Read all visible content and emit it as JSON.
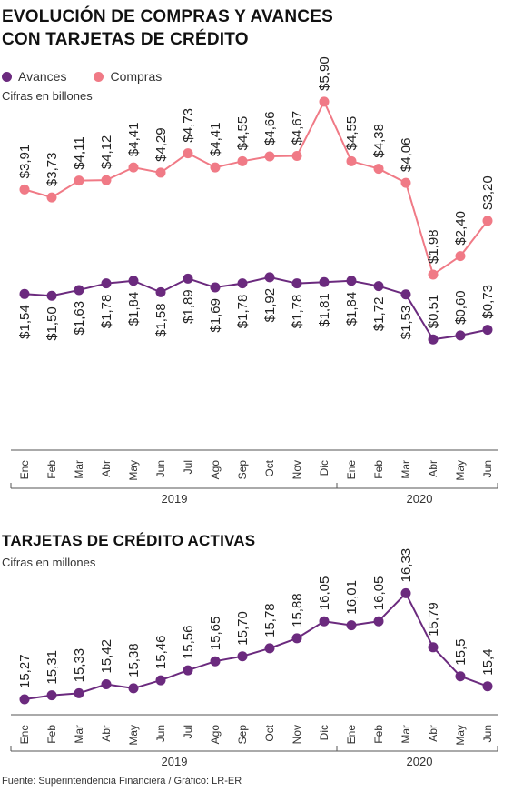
{
  "chart1": {
    "title_line1": "EVOLUCIÓN DE COMPRAS Y AVANCES",
    "title_line2": "CON TARJETAS DE CRÉDITO",
    "subtitle": "Cifras en billones",
    "legend": {
      "avances": "Avances",
      "compras": "Compras"
    },
    "colors": {
      "avances": "#6b2a7e",
      "compras": "#f07a86"
    }
  },
  "chart2": {
    "title": "TARJETAS DE CRÉDITO ACTIVAS",
    "subtitle": "Cifras en millones",
    "color": "#6b2a7e"
  },
  "source": "Fuente: Superintendencia Financiera / Gráfico: LR-ER",
  "chart_data": [
    {
      "type": "line",
      "title": "EVOLUCIÓN DE COMPRAS Y AVANCES CON TARJETAS DE CRÉDITO",
      "subtitle": "Cifras en billones",
      "categories": [
        "Ene",
        "Feb",
        "Mar",
        "Abr",
        "May",
        "Jun",
        "Jul",
        "Ago",
        "Sep",
        "Oct",
        "Nov",
        "Dic",
        "Ene",
        "Feb",
        "Mar",
        "Abr",
        "May",
        "Jun"
      ],
      "years": [
        {
          "label": "2019",
          "months": 12
        },
        {
          "label": "2020",
          "months": 6
        }
      ],
      "series": [
        {
          "name": "Compras",
          "values": [
            3.91,
            3.73,
            4.11,
            4.12,
            4.41,
            4.29,
            4.73,
            4.41,
            4.55,
            4.66,
            4.67,
            5.9,
            4.55,
            4.38,
            4.06,
            1.98,
            2.4,
            3.2
          ],
          "labels": [
            "$3,91",
            "$3,73",
            "$4,11",
            "$4,12",
            "$4,41",
            "$4,29",
            "$4,73",
            "$4,41",
            "$4,55",
            "$4,66",
            "$4,67",
            "$5,90",
            "$4,55",
            "$4,38",
            "$4,06",
            "$1,98",
            "$2,40",
            "$3,20"
          ]
        },
        {
          "name": "Avances",
          "values": [
            1.54,
            1.5,
            1.63,
            1.78,
            1.84,
            1.58,
            1.89,
            1.69,
            1.78,
            1.92,
            1.78,
            1.81,
            1.84,
            1.72,
            1.53,
            0.51,
            0.6,
            0.73
          ],
          "labels": [
            "$1,54",
            "$1,50",
            "$1,63",
            "$1,78",
            "$1,84",
            "$1,58",
            "$1,89",
            "$1,69",
            "$1,78",
            "$1,92",
            "$1,78",
            "$1,81",
            "$1,84",
            "$1,72",
            "$1,53",
            "$0,51",
            "$0,60",
            "$0,73"
          ]
        }
      ],
      "legend": "top-left",
      "grid": false
    },
    {
      "type": "line",
      "title": "TARJETAS DE CRÉDITO ACTIVAS",
      "subtitle": "Cifras en millones",
      "categories": [
        "Ene",
        "Feb",
        "Mar",
        "Abr",
        "May",
        "Jun",
        "Jul",
        "Ago",
        "Sep",
        "Oct",
        "Nov",
        "Dic",
        "Ene",
        "Feb",
        "Mar",
        "Abr",
        "May",
        "Jun"
      ],
      "years": [
        {
          "label": "2019",
          "months": 12
        },
        {
          "label": "2020",
          "months": 6
        }
      ],
      "series": [
        {
          "values": [
            15.27,
            15.31,
            15.33,
            15.42,
            15.38,
            15.46,
            15.56,
            15.65,
            15.7,
            15.78,
            15.88,
            16.05,
            16.01,
            16.05,
            16.33,
            15.79,
            15.5,
            15.4
          ],
          "labels": [
            "15,27",
            "15,31",
            "15,33",
            "15,42",
            "15,38",
            "15,46",
            "15,56",
            "15,65",
            "15,70",
            "15,78",
            "15,88",
            "16,05",
            "16,01",
            "16,05",
            "16,33",
            "15,79",
            "15,5",
            "15,4"
          ]
        }
      ],
      "grid": false
    }
  ]
}
